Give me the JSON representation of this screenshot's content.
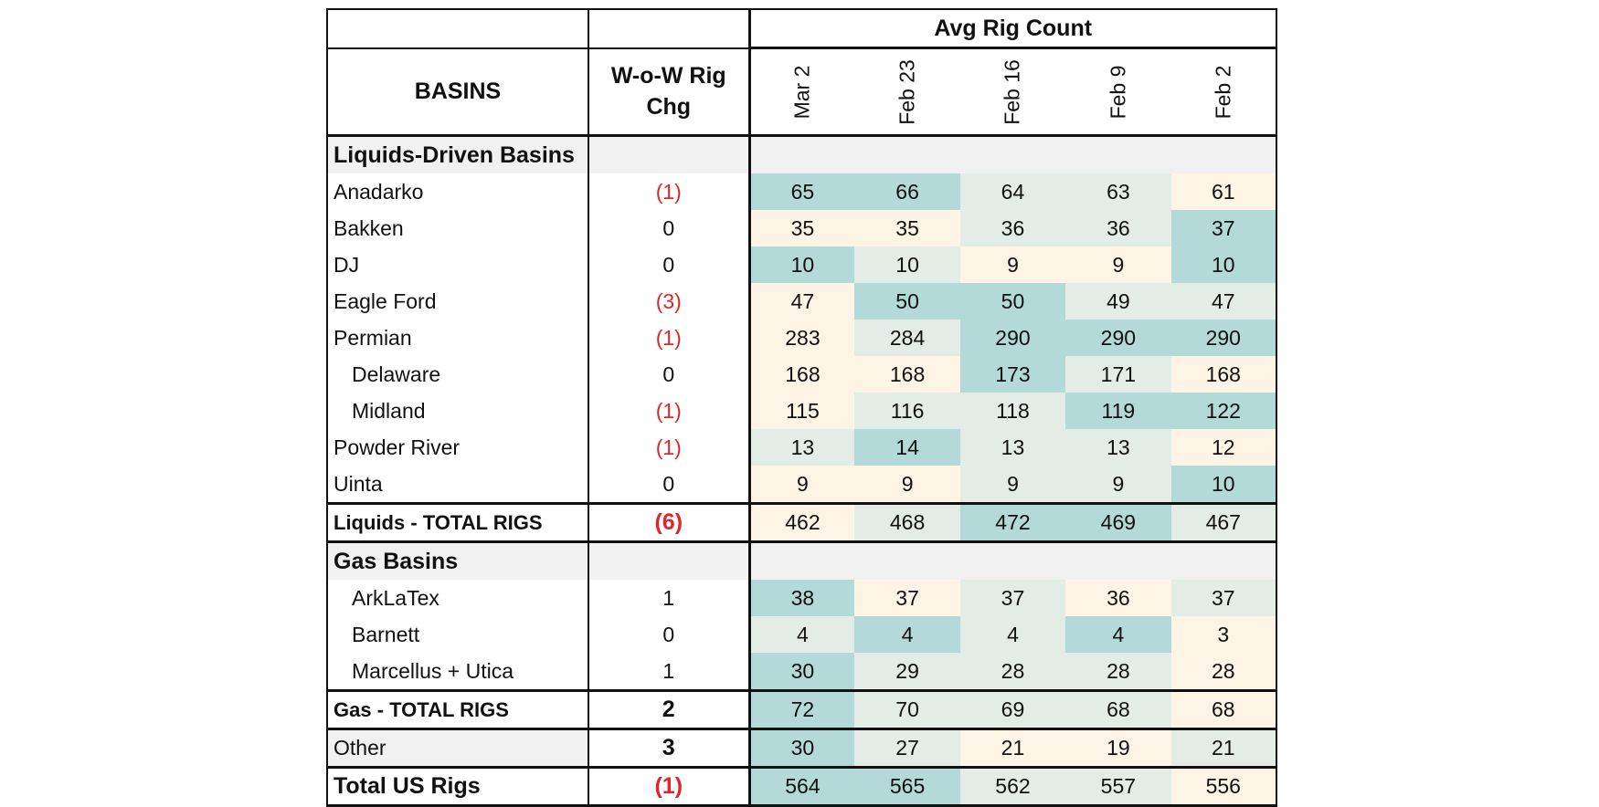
{
  "header": {
    "group_label": "Avg Rig Count",
    "basins_label": "BASINS",
    "chg_label_line1": "W-o-W Rig",
    "chg_label_line2": "Chg",
    "weeks": [
      "Mar 2",
      "Feb 23",
      "Feb 16",
      "Feb 9",
      "Feb 2"
    ]
  },
  "colors": {
    "high": "#b3d9d9",
    "mid": "#e4ece6",
    "low": "#fdf4e6",
    "negative_text": "#e0262a",
    "section_fill": "#f1f1f1"
  },
  "liquids": {
    "section_label": "Liquids-Driven Basins",
    "rows": [
      {
        "name": "Anadarko",
        "chg": "(1)",
        "values": [
          "65",
          "66",
          "64",
          "63",
          "61"
        ]
      },
      {
        "name": "Bakken",
        "chg": "0",
        "values": [
          "35",
          "35",
          "36",
          "36",
          "37"
        ]
      },
      {
        "name": "DJ",
        "chg": "0",
        "values": [
          "10",
          "10",
          "9",
          "9",
          "10"
        ]
      },
      {
        "name": "Eagle Ford",
        "chg": "(3)",
        "values": [
          "47",
          "50",
          "50",
          "49",
          "47"
        ]
      },
      {
        "name": "Permian",
        "chg": "(1)",
        "values": [
          "283",
          "284",
          "290",
          "290",
          "290"
        ]
      },
      {
        "name": "Delaware",
        "chg": "0",
        "values": [
          "168",
          "168",
          "173",
          "171",
          "168"
        ]
      },
      {
        "name": "Midland",
        "chg": "(1)",
        "values": [
          "115",
          "116",
          "118",
          "119",
          "122"
        ]
      },
      {
        "name": "Powder River",
        "chg": "(1)",
        "values": [
          "13",
          "14",
          "13",
          "13",
          "12"
        ]
      },
      {
        "name": "Uinta",
        "chg": "0",
        "values": [
          "9",
          "9",
          "9",
          "9",
          "10"
        ]
      }
    ],
    "total": {
      "name": "Liquids - TOTAL RIGS",
      "chg": "(6)",
      "values": [
        "462",
        "468",
        "472",
        "469",
        "467"
      ]
    }
  },
  "gas": {
    "section_label": "Gas Basins",
    "rows": [
      {
        "name": "ArkLaTex",
        "chg": "1",
        "values": [
          "38",
          "37",
          "37",
          "36",
          "37"
        ]
      },
      {
        "name": "Barnett",
        "chg": "0",
        "values": [
          "4",
          "4",
          "4",
          "4",
          "3"
        ]
      },
      {
        "name": "Marcellus + Utica",
        "chg": "1",
        "values": [
          "30",
          "29",
          "28",
          "28",
          "28"
        ]
      }
    ],
    "total": {
      "name": "Gas - TOTAL RIGS",
      "chg": "2",
      "values": [
        "72",
        "70",
        "69",
        "68",
        "68"
      ]
    }
  },
  "other": {
    "name": "Other",
    "chg": "3",
    "values": [
      "30",
      "27",
      "21",
      "19",
      "21"
    ]
  },
  "grand_total": {
    "name": "Total US Rigs",
    "chg": "(1)",
    "values": [
      "564",
      "565",
      "562",
      "557",
      "556"
    ]
  }
}
